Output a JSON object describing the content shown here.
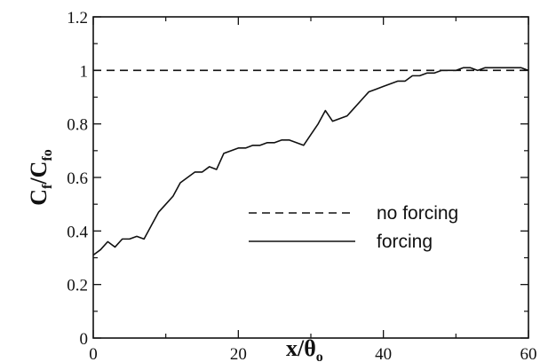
{
  "chart_data": {
    "type": "line",
    "xlabel": "x/θo",
    "ylabel": "Cf/Cfo",
    "xlabel_main": "x/θ",
    "xlabel_sub": "o",
    "ylabel_main_1": "C",
    "ylabel_sub_1": "f",
    "ylabel_slash": "/",
    "ylabel_main_2": "C",
    "ylabel_sub_2": "fo",
    "xlim": [
      0,
      60
    ],
    "ylim": [
      0,
      1.2
    ],
    "x_ticks": [
      "0",
      "20",
      "40",
      "60"
    ],
    "y_ticks": [
      "0",
      "0.2",
      "0.4",
      "0.6",
      "0.8",
      "1",
      "1.2"
    ],
    "grid": false,
    "legend_position": "center-right",
    "series": [
      {
        "name": "no forcing",
        "style": "dashed",
        "x": [
          0,
          60
        ],
        "y": [
          1.0,
          1.0
        ]
      },
      {
        "name": "forcing",
        "style": "solid",
        "x": [
          0,
          1,
          2,
          3,
          4,
          5,
          6,
          7,
          8,
          9,
          10,
          11,
          12,
          13,
          14,
          15,
          16,
          17,
          18,
          19,
          20,
          21,
          22,
          23,
          24,
          25,
          26,
          27,
          28,
          29,
          30,
          31,
          32,
          33,
          34,
          35,
          36,
          37,
          38,
          39,
          40,
          41,
          42,
          43,
          44,
          45,
          46,
          47,
          48,
          49,
          50,
          51,
          52,
          53,
          54,
          55,
          56,
          57,
          58,
          59,
          60
        ],
        "y": [
          0.31,
          0.33,
          0.36,
          0.34,
          0.37,
          0.37,
          0.38,
          0.37,
          0.42,
          0.47,
          0.5,
          0.53,
          0.58,
          0.6,
          0.62,
          0.62,
          0.64,
          0.63,
          0.69,
          0.7,
          0.71,
          0.71,
          0.72,
          0.72,
          0.73,
          0.73,
          0.74,
          0.74,
          0.73,
          0.72,
          0.76,
          0.8,
          0.85,
          0.81,
          0.82,
          0.83,
          0.86,
          0.89,
          0.92,
          0.93,
          0.94,
          0.95,
          0.96,
          0.96,
          0.98,
          0.98,
          0.99,
          0.99,
          1.0,
          1.0,
          1.0,
          1.01,
          1.01,
          1.0,
          1.01,
          1.01,
          1.01,
          1.01,
          1.01,
          1.01,
          1.0
        ]
      }
    ]
  },
  "colors": {
    "axis": "#111111",
    "line": "#111111",
    "background": "#ffffff"
  }
}
